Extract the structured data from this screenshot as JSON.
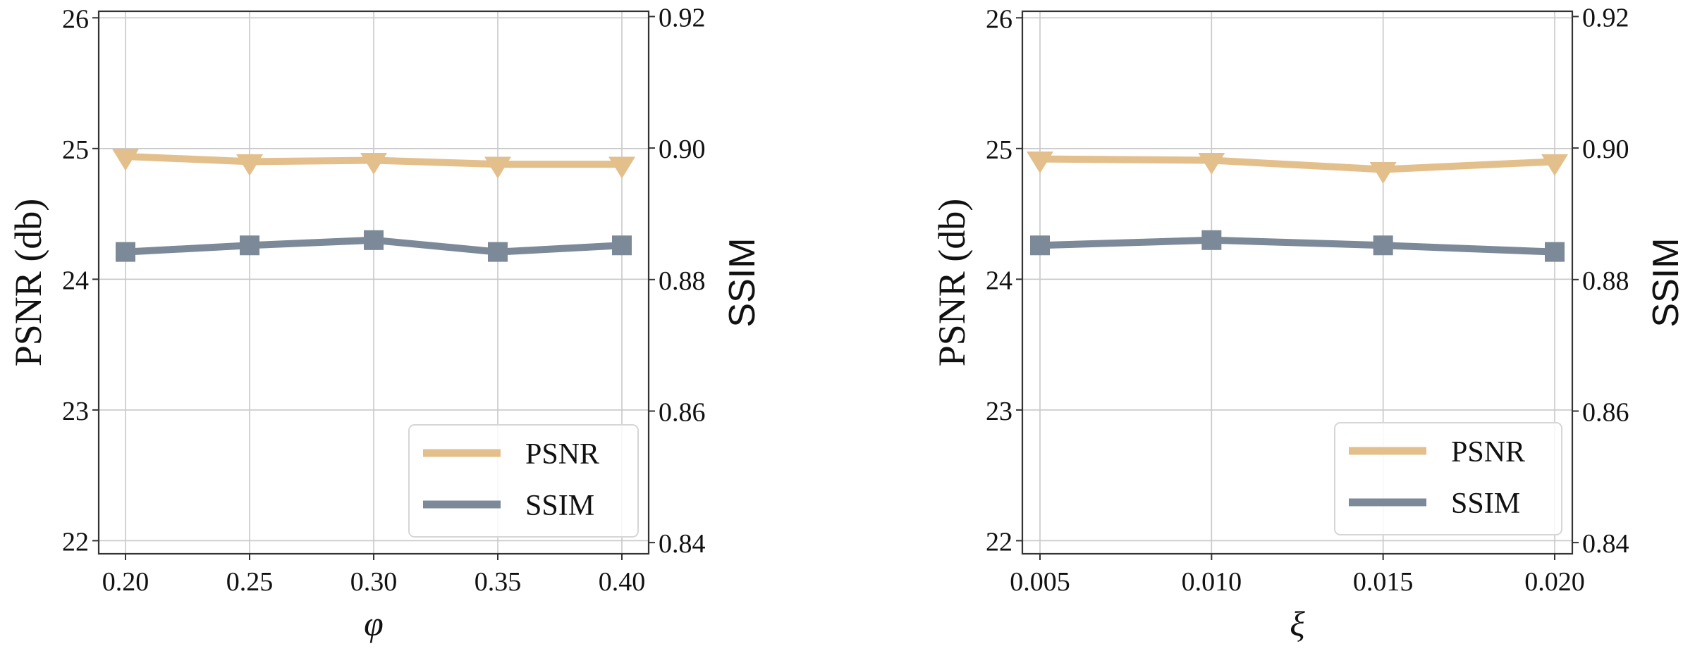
{
  "chart_data": [
    {
      "type": "line",
      "title": "",
      "xlabel": "φ",
      "ylabel_left": "PSNR (db)",
      "ylabel_right": "SSIM",
      "x": [
        0.2,
        0.25,
        0.3,
        0.35,
        0.4
      ],
      "x_tick_labels": [
        "0.20",
        "0.25",
        "0.30",
        "0.35",
        "0.40"
      ],
      "ylim_left": [
        21.9,
        26.05
      ],
      "ylim_right": [
        0.8383,
        0.9208
      ],
      "y_ticks_left": [
        "22",
        "23",
        "24",
        "25",
        "26"
      ],
      "y_ticks_right": [
        "0.84",
        "0.86",
        "0.88",
        "0.90",
        "0.92"
      ],
      "grid": true,
      "legend_position": "bottom-right",
      "series": [
        {
          "name": "PSNR",
          "axis": "left",
          "marker": "triangle-down",
          "color": "#e3bf8c",
          "values": [
            24.94,
            24.9,
            24.91,
            24.88,
            24.88
          ]
        },
        {
          "name": "SSIM",
          "axis": "right",
          "marker": "square",
          "color": "#7c8999",
          "values": [
            0.8842,
            0.8852,
            0.886,
            0.8842,
            0.8852
          ]
        }
      ]
    },
    {
      "type": "line",
      "title": "",
      "xlabel": "ξ",
      "ylabel_left": "PSNR (db)",
      "ylabel_right": "SSIM",
      "x": [
        0.005,
        0.01,
        0.015,
        0.02
      ],
      "x_tick_labels": [
        "0.005",
        "0.010",
        "0.015",
        "0.020"
      ],
      "ylim_left": [
        21.9,
        26.05
      ],
      "ylim_right": [
        0.8383,
        0.9208
      ],
      "y_ticks_left": [
        "22",
        "23",
        "24",
        "25",
        "26"
      ],
      "y_ticks_right": [
        "0.84",
        "0.86",
        "0.88",
        "0.90",
        "0.92"
      ],
      "grid": true,
      "legend_position": "bottom-right",
      "series": [
        {
          "name": "PSNR",
          "axis": "left",
          "marker": "triangle-down",
          "color": "#e3bf8c",
          "values": [
            24.92,
            24.91,
            24.84,
            24.9
          ]
        },
        {
          "name": "SSIM",
          "axis": "right",
          "marker": "square",
          "color": "#7c8999",
          "values": [
            0.8852,
            0.886,
            0.8852,
            0.8842
          ]
        }
      ]
    }
  ]
}
